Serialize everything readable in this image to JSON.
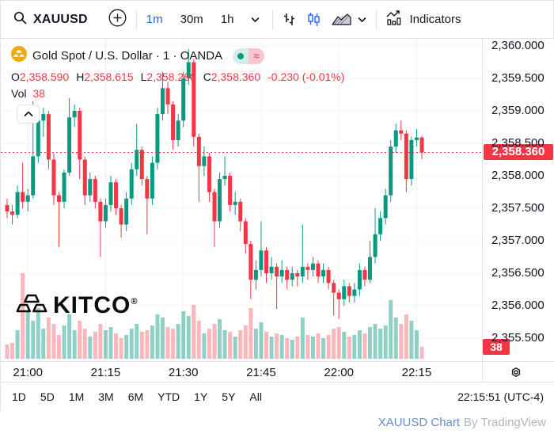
{
  "toolbar": {
    "symbol": "XAUUSD",
    "intervals": [
      "1m",
      "30m",
      "1h"
    ],
    "active_interval": "1m",
    "indicators_label": "Indicators"
  },
  "legend": {
    "title": "Gold Spot / U.S. Dollar · 1 · OANDA",
    "approx_symbol": "≈",
    "ohlc": [
      {
        "label": "O",
        "value": "2,358.590"
      },
      {
        "label": "H",
        "value": "2,358.615"
      },
      {
        "label": "L",
        "value": "2,358.260"
      },
      {
        "label": "C",
        "value": "2,358.360"
      }
    ],
    "change": "-0.230 (-0.01%)",
    "vol_label": "Vol",
    "vol_value": "38"
  },
  "watermark": {
    "text": "KITCO",
    "reg": "®"
  },
  "price_axis": {
    "current_price_label": "2,358.360",
    "volume_label": "38"
  },
  "bottom_toolbar": {
    "ranges": [
      "1D",
      "5D",
      "1M",
      "3M",
      "6M",
      "YTD",
      "1Y",
      "5Y",
      "All"
    ],
    "clock": "22:15:51 (UTC-4)"
  },
  "footer": {
    "link": "XAUUSD Chart",
    "suffix": "By TradingView"
  },
  "colors": {
    "up": "#089981",
    "down": "#f23645",
    "vol_up": "rgba(8,153,129,0.45)",
    "vol_down": "rgba(247,82,95,0.42)",
    "accent": "#2962ff",
    "grid": "#f0f3fa",
    "border": "#e0e3eb",
    "text": "#131722",
    "gold": "#f3a712"
  },
  "chart_data": {
    "type": "candlestick",
    "symbol": "XAUUSD",
    "interval": "1m",
    "title": "Gold Spot / U.S. Dollar · 1 · OANDA",
    "current_price": 2358.36,
    "last_volume": 38,
    "x_ticks": [
      "21:00",
      "21:15",
      "21:30",
      "21:45",
      "22:00",
      "22:15"
    ],
    "y_axis": {
      "min": 2355.2,
      "max": 2360.1,
      "tick_step": 0.5,
      "ticks": [
        2360.0,
        2359.5,
        2359.0,
        2358.5,
        2358.0,
        2357.5,
        2357.0,
        2356.5,
        2356.0,
        2355.5
      ]
    },
    "columns": [
      "time",
      "open",
      "high",
      "low",
      "close",
      "volume"
    ],
    "candles": [
      [
        "20:56",
        2357.55,
        2357.65,
        2357.35,
        2357.45,
        45
      ],
      [
        "20:57",
        2357.45,
        2357.55,
        2357.25,
        2357.4,
        50
      ],
      [
        "20:58",
        2357.4,
        2357.85,
        2357.35,
        2357.75,
        90
      ],
      [
        "20:59",
        2357.75,
        2358.2,
        2357.5,
        2357.6,
        270
      ],
      [
        "21:00",
        2357.6,
        2357.8,
        2357.45,
        2357.7,
        150
      ],
      [
        "21:01",
        2357.7,
        2359.15,
        2357.65,
        2358.3,
        120
      ],
      [
        "21:02",
        2358.3,
        2358.95,
        2358.2,
        2358.85,
        160
      ],
      [
        "21:03",
        2358.85,
        2359.05,
        2358.6,
        2358.95,
        95
      ],
      [
        "21:04",
        2358.95,
        2359.0,
        2358.1,
        2358.25,
        130
      ],
      [
        "21:05",
        2358.25,
        2358.35,
        2357.55,
        2357.7,
        110
      ],
      [
        "21:06",
        2357.7,
        2357.75,
        2356.9,
        2357.6,
        75
      ],
      [
        "21:07",
        2357.6,
        2358.1,
        2357.5,
        2358.05,
        105
      ],
      [
        "21:08",
        2358.05,
        2359.2,
        2358.0,
        2358.9,
        140
      ],
      [
        "21:09",
        2358.9,
        2359.1,
        2358.75,
        2359.0,
        90
      ],
      [
        "21:10",
        2359.0,
        2359.05,
        2357.95,
        2358.25,
        120
      ],
      [
        "21:11",
        2358.25,
        2358.3,
        2357.55,
        2357.7,
        95
      ],
      [
        "21:12",
        2357.7,
        2358.05,
        2357.6,
        2357.95,
        70
      ],
      [
        "21:13",
        2357.95,
        2358.0,
        2357.5,
        2357.6,
        85
      ],
      [
        "21:14",
        2357.6,
        2357.65,
        2356.75,
        2357.3,
        110
      ],
      [
        "21:15",
        2357.3,
        2357.65,
        2357.2,
        2357.55,
        90
      ],
      [
        "21:16",
        2357.55,
        2358.0,
        2357.45,
        2357.9,
        100
      ],
      [
        "21:17",
        2357.9,
        2357.95,
        2357.4,
        2357.5,
        80
      ],
      [
        "21:18",
        2357.5,
        2357.55,
        2357.05,
        2357.25,
        65
      ],
      [
        "21:19",
        2357.25,
        2357.75,
        2357.15,
        2357.65,
        75
      ],
      [
        "21:20",
        2357.65,
        2358.2,
        2357.55,
        2358.1,
        95
      ],
      [
        "21:21",
        2358.1,
        2358.8,
        2358.0,
        2358.4,
        110
      ],
      [
        "21:22",
        2358.4,
        2358.45,
        2357.85,
        2357.95,
        85
      ],
      [
        "21:23",
        2357.95,
        2358.0,
        2357.1,
        2357.65,
        90
      ],
      [
        "21:24",
        2357.65,
        2358.3,
        2357.55,
        2358.2,
        105
      ],
      [
        "21:25",
        2358.2,
        2359.05,
        2358.1,
        2358.95,
        140
      ],
      [
        "21:26",
        2358.95,
        2359.6,
        2358.85,
        2359.35,
        130
      ],
      [
        "21:27",
        2359.35,
        2359.45,
        2358.95,
        2359.1,
        100
      ],
      [
        "21:28",
        2359.1,
        2359.15,
        2358.4,
        2358.55,
        95
      ],
      [
        "21:29",
        2358.55,
        2358.95,
        2358.45,
        2358.85,
        110
      ],
      [
        "21:30",
        2358.85,
        2359.6,
        2358.75,
        2359.5,
        150
      ],
      [
        "21:31",
        2359.5,
        2359.95,
        2359.4,
        2359.75,
        135
      ],
      [
        "21:32",
        2359.75,
        2359.8,
        2358.45,
        2358.6,
        170
      ],
      [
        "21:33",
        2358.6,
        2358.65,
        2357.6,
        2358.15,
        120
      ],
      [
        "21:34",
        2358.15,
        2358.45,
        2358.0,
        2358.3,
        80
      ],
      [
        "21:35",
        2358.3,
        2358.35,
        2357.6,
        2357.75,
        95
      ],
      [
        "21:36",
        2357.75,
        2357.8,
        2356.9,
        2357.3,
        110
      ],
      [
        "21:37",
        2357.3,
        2358.05,
        2357.2,
        2357.95,
        125
      ],
      [
        "21:38",
        2357.95,
        2358.3,
        2357.85,
        2358.0,
        90
      ],
      [
        "21:39",
        2358.0,
        2358.05,
        2357.45,
        2357.55,
        85
      ],
      [
        "21:40",
        2357.55,
        2357.75,
        2357.4,
        2357.6,
        70
      ],
      [
        "21:41",
        2357.6,
        2357.65,
        2357.15,
        2357.3,
        90
      ],
      [
        "21:42",
        2357.3,
        2357.35,
        2356.8,
        2356.95,
        105
      ],
      [
        "21:43",
        2356.95,
        2357.0,
        2356.1,
        2356.4,
        160
      ],
      [
        "21:44",
        2356.4,
        2356.7,
        2356.25,
        2356.55,
        95
      ],
      [
        "21:45",
        2356.55,
        2357.3,
        2356.45,
        2356.85,
        115
      ],
      [
        "21:46",
        2356.85,
        2356.9,
        2356.35,
        2356.5,
        85
      ],
      [
        "21:47",
        2356.5,
        2356.75,
        2356.4,
        2356.6,
        70
      ],
      [
        "21:48",
        2356.6,
        2356.65,
        2355.95,
        2356.45,
        80
      ],
      [
        "21:49",
        2356.45,
        2356.7,
        2356.35,
        2356.55,
        75
      ],
      [
        "21:50",
        2356.55,
        2356.6,
        2356.25,
        2356.4,
        65
      ],
      [
        "21:51",
        2356.4,
        2356.6,
        2356.3,
        2356.5,
        60
      ],
      [
        "21:52",
        2356.5,
        2356.55,
        2356.3,
        2356.45,
        70
      ],
      [
        "21:53",
        2356.45,
        2357.25,
        2356.35,
        2356.6,
        130
      ],
      [
        "21:54",
        2356.6,
        2356.65,
        2356.4,
        2356.55,
        75
      ],
      [
        "21:55",
        2356.55,
        2356.75,
        2356.45,
        2356.65,
        70
      ],
      [
        "21:56",
        2356.65,
        2356.7,
        2356.35,
        2356.45,
        80
      ],
      [
        "21:57",
        2356.45,
        2356.65,
        2356.35,
        2356.55,
        65
      ],
      [
        "21:58",
        2356.55,
        2356.6,
        2356.25,
        2356.35,
        75
      ],
      [
        "21:59",
        2356.35,
        2356.4,
        2355.85,
        2356.2,
        95
      ],
      [
        "22:00",
        2356.2,
        2356.25,
        2355.8,
        2356.1,
        100
      ],
      [
        "22:01",
        2356.1,
        2356.4,
        2356.0,
        2356.3,
        85
      ],
      [
        "22:02",
        2356.3,
        2356.35,
        2356.05,
        2356.15,
        70
      ],
      [
        "22:03",
        2356.15,
        2356.35,
        2356.05,
        2356.25,
        75
      ],
      [
        "22:04",
        2356.25,
        2356.65,
        2356.15,
        2356.55,
        90
      ],
      [
        "22:05",
        2356.55,
        2356.6,
        2356.3,
        2356.4,
        80
      ],
      [
        "22:06",
        2356.4,
        2357.0,
        2356.35,
        2356.75,
        100
      ],
      [
        "22:07",
        2356.75,
        2357.5,
        2356.65,
        2357.1,
        110
      ],
      [
        "22:08",
        2357.1,
        2357.45,
        2357.0,
        2357.35,
        95
      ],
      [
        "22:09",
        2357.35,
        2357.8,
        2357.25,
        2357.7,
        105
      ],
      [
        "22:10",
        2357.7,
        2358.55,
        2357.6,
        2358.45,
        185
      ],
      [
        "22:11",
        2358.45,
        2358.8,
        2358.35,
        2358.7,
        130
      ],
      [
        "22:12",
        2358.7,
        2358.85,
        2358.55,
        2358.65,
        110
      ],
      [
        "22:13",
        2358.65,
        2358.7,
        2357.75,
        2357.95,
        140
      ],
      [
        "22:14",
        2357.95,
        2358.6,
        2357.85,
        2358.55,
        120
      ],
      [
        "22:15",
        2358.55,
        2358.72,
        2358.45,
        2358.59,
        90
      ],
      [
        "22:16",
        2358.59,
        2358.615,
        2358.26,
        2358.36,
        38
      ]
    ]
  }
}
